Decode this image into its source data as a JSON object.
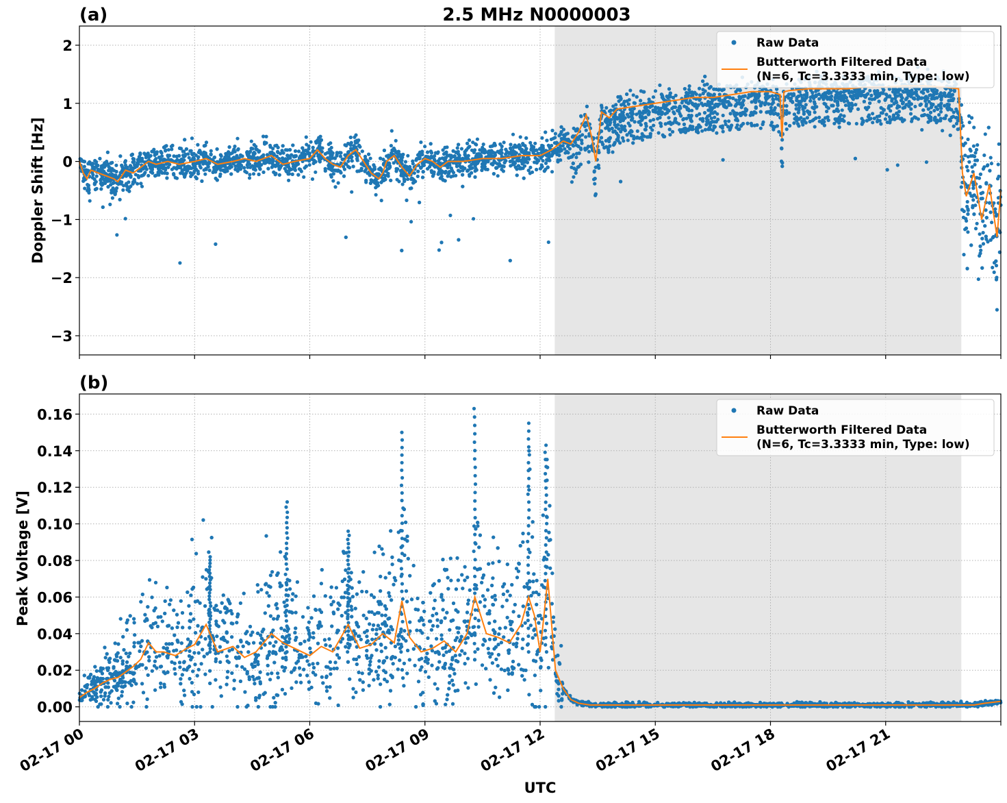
{
  "figure": {
    "title": "2.5 MHz N0000003",
    "xlabel": "UTC"
  },
  "colors": {
    "raw": "#1f77b4",
    "filtered": "#ff7f0e",
    "shade": "#e6e6e6",
    "grid": "#b0b0b0"
  },
  "chart_data": [
    {
      "type": "scatter",
      "panel_label": "(a)",
      "ylabel": "Doppler Shift [Hz]",
      "xlim": [
        0,
        24
      ],
      "ylim": [
        -3.33,
        2.33
      ],
      "x_tick_labels": [
        "02-17 00",
        "02-17 03",
        "02-17 06",
        "02-17 09",
        "02-17 12",
        "02-17 15",
        "02-17 18",
        "02-17 21"
      ],
      "x_ticks": [
        0,
        3,
        6,
        9,
        12,
        15,
        18,
        21
      ],
      "y_ticks": [
        -3,
        -2,
        -1,
        0,
        1,
        2
      ],
      "y_tick_labels": [
        "−3",
        "−2",
        "−1",
        "0",
        "1",
        "2"
      ],
      "grid": true,
      "shaded_interval": [
        12.38,
        22.97
      ],
      "legend": {
        "placement": "top-right",
        "raw_label": "Raw Data",
        "filtered_label_line1": "Butterworth Filtered Data",
        "filtered_label_line2": "(N=6, Tc=3.3333 min, Type: low)"
      },
      "series": [
        {
          "name": "Butterworth Filtered Data",
          "kind": "line",
          "x": [
            0,
            0.1,
            0.2,
            0.3,
            0.5,
            0.7,
            0.9,
            1.0,
            1.2,
            1.4,
            1.6,
            1.8,
            2.0,
            2.3,
            2.6,
            3.0,
            3.3,
            3.6,
            4.0,
            4.3,
            4.6,
            5.0,
            5.3,
            5.6,
            6.0,
            6.2,
            6.4,
            6.6,
            6.8,
            7.0,
            7.2,
            7.4,
            7.6,
            7.8,
            7.9,
            8.0,
            8.2,
            8.4,
            8.6,
            8.8,
            9.0,
            9.2,
            9.4,
            9.6,
            10.0,
            10.5,
            11.0,
            11.5,
            12.0,
            12.3,
            12.6,
            12.8,
            13.0,
            13.2,
            13.35,
            13.45,
            13.6,
            13.8,
            14.0,
            14.5,
            15.0,
            15.5,
            16.0,
            16.5,
            17.0,
            17.5,
            18.0,
            18.25,
            18.3,
            18.35,
            18.5,
            19.0,
            19.5,
            20.0,
            20.5,
            21.0,
            21.5,
            22.0,
            22.5,
            22.9,
            23.0,
            23.1,
            23.3,
            23.5,
            23.7,
            23.9,
            24.0
          ],
          "y": [
            0.0,
            -0.2,
            -0.3,
            -0.15,
            -0.2,
            -0.25,
            -0.3,
            -0.35,
            -0.15,
            -0.2,
            -0.1,
            0.0,
            -0.05,
            0.0,
            -0.05,
            0.0,
            0.05,
            -0.05,
            0.0,
            0.05,
            0.0,
            0.1,
            -0.05,
            0.0,
            0.05,
            0.2,
            0.05,
            -0.05,
            -0.1,
            0.1,
            0.2,
            0.0,
            -0.2,
            -0.3,
            -0.2,
            0.0,
            0.1,
            -0.1,
            -0.25,
            -0.05,
            0.05,
            0.0,
            -0.1,
            0.0,
            0.0,
            0.05,
            0.05,
            0.1,
            0.1,
            0.2,
            0.35,
            0.3,
            0.5,
            0.8,
            0.4,
            0.0,
            0.85,
            0.75,
            0.9,
            0.95,
            1.0,
            1.05,
            1.1,
            1.1,
            1.15,
            1.2,
            1.2,
            1.15,
            0.4,
            1.2,
            1.22,
            1.25,
            1.25,
            1.25,
            1.28,
            1.28,
            1.3,
            1.3,
            1.28,
            1.25,
            -0.2,
            -0.6,
            -0.2,
            -1.0,
            -0.4,
            -1.3,
            -0.5
          ]
        },
        {
          "name": "Raw Data",
          "kind": "scatter",
          "note_values": "dense point cloud around the filtered curve",
          "spread": [
            0.35,
            0.5
          ]
        }
      ]
    },
    {
      "type": "scatter",
      "panel_label": "(b)",
      "ylabel": "Peak Voltage [V]",
      "xlim": [
        0,
        24
      ],
      "ylim": [
        -0.008,
        0.171
      ],
      "x_tick_labels": [
        "02-17 00",
        "02-17 03",
        "02-17 06",
        "02-17 09",
        "02-17 12",
        "02-17 15",
        "02-17 18",
        "02-17 21"
      ],
      "x_ticks": [
        0,
        3,
        6,
        9,
        12,
        15,
        18,
        21
      ],
      "y_ticks": [
        0.0,
        0.02,
        0.04,
        0.06,
        0.08,
        0.1,
        0.12,
        0.14,
        0.16
      ],
      "y_tick_labels": [
        "0.00",
        "0.02",
        "0.04",
        "0.06",
        "0.08",
        "0.10",
        "0.12",
        "0.14",
        "0.16"
      ],
      "grid": true,
      "shaded_interval": [
        12.38,
        22.97
      ],
      "legend": {
        "placement": "top-right",
        "raw_label": "Raw Data",
        "filtered_label_line1": "Butterworth Filtered Data",
        "filtered_label_line2": "(N=6, Tc=3.3333 min, Type: low)"
      },
      "series": [
        {
          "name": "Butterworth Filtered Data",
          "kind": "line",
          "x": [
            0,
            0.2,
            0.4,
            0.6,
            0.8,
            1.0,
            1.2,
            1.4,
            1.6,
            1.8,
            2.0,
            2.2,
            2.5,
            2.8,
            3.0,
            3.3,
            3.6,
            4.0,
            4.3,
            4.6,
            5.0,
            5.3,
            5.6,
            6.0,
            6.3,
            6.6,
            7.0,
            7.3,
            7.6,
            7.9,
            8.2,
            8.4,
            8.6,
            8.9,
            9.2,
            9.5,
            9.8,
            10.1,
            10.3,
            10.6,
            10.9,
            11.2,
            11.5,
            11.7,
            11.85,
            12.0,
            12.2,
            12.4,
            12.6,
            12.8,
            13.0,
            13.3,
            13.6,
            14.0,
            15.0,
            16.0,
            17.0,
            18.0,
            19.0,
            20.0,
            21.0,
            22.0,
            22.9,
            23.3,
            23.6,
            24.0
          ],
          "y": [
            0.005,
            0.008,
            0.01,
            0.013,
            0.015,
            0.016,
            0.019,
            0.022,
            0.026,
            0.035,
            0.03,
            0.03,
            0.028,
            0.032,
            0.034,
            0.045,
            0.03,
            0.033,
            0.027,
            0.03,
            0.04,
            0.035,
            0.032,
            0.028,
            0.033,
            0.03,
            0.045,
            0.032,
            0.034,
            0.04,
            0.035,
            0.058,
            0.038,
            0.03,
            0.032,
            0.036,
            0.03,
            0.04,
            0.06,
            0.04,
            0.038,
            0.035,
            0.045,
            0.06,
            0.05,
            0.03,
            0.07,
            0.02,
            0.01,
            0.004,
            0.002,
            0.001,
            0.001,
            0.001,
            0.001,
            0.001,
            0.001,
            0.001,
            0.001,
            0.001,
            0.001,
            0.001,
            0.001,
            0.001,
            0.002,
            0.003
          ]
        },
        {
          "name": "Raw Data",
          "kind": "scatter",
          "note_values": "dense point cloud with spikes up to about 0.16 V before 12:20 UTC, near zero afterwards",
          "peak_spikes": [
            {
              "x": 3.4,
              "y": 0.082
            },
            {
              "x": 5.4,
              "y": 0.112
            },
            {
              "x": 7.0,
              "y": 0.096
            },
            {
              "x": 8.4,
              "y": 0.15
            },
            {
              "x": 10.3,
              "y": 0.163
            },
            {
              "x": 11.7,
              "y": 0.155
            },
            {
              "x": 12.15,
              "y": 0.143
            }
          ]
        }
      ]
    }
  ]
}
